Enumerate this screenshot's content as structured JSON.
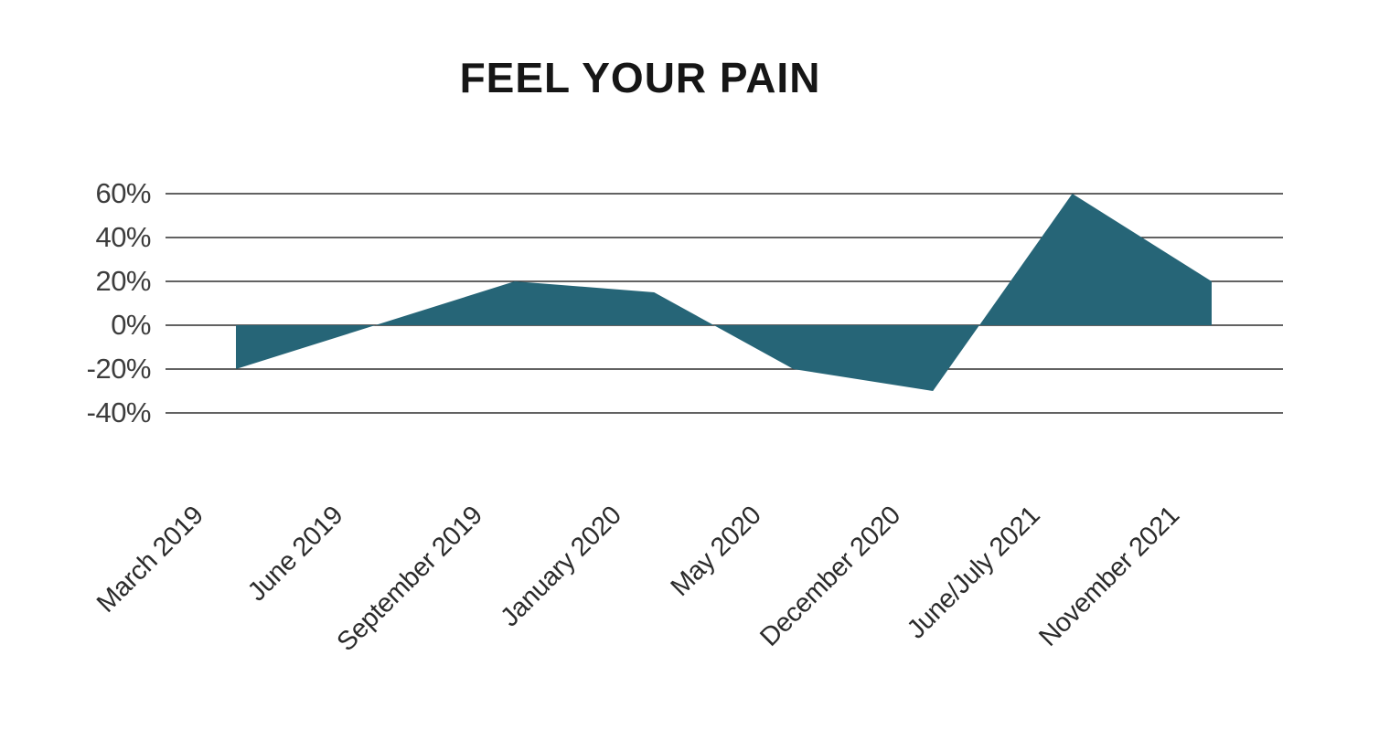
{
  "chart_data": {
    "type": "area",
    "title": "FEEL YOUR PAIN",
    "categories": [
      "March 2019",
      "June 2019",
      "September 2019",
      "January 2020",
      "May 2020",
      "December 2020",
      "June/July 2021",
      "November 2021"
    ],
    "values": [
      -20,
      0,
      20,
      15,
      -20,
      -30,
      60,
      20
    ],
    "unit": "%",
    "yticks": [
      60,
      40,
      20,
      0,
      -20,
      -40
    ],
    "ytick_labels": [
      "60%",
      "40%",
      "20%",
      "0%",
      "-20%",
      "-40%"
    ],
    "ylim": [
      -40,
      60
    ],
    "xlabel": "",
    "ylabel": "",
    "grid": "horizontal",
    "legend": "none",
    "baseline": 0,
    "colors": {
      "area": "#266577",
      "grid": "#2e2e2e",
      "ytick_text": "#3d3d3d",
      "xtick_text": "#2b2b2b",
      "title_text": "#161616",
      "background": "#ffffff"
    }
  }
}
